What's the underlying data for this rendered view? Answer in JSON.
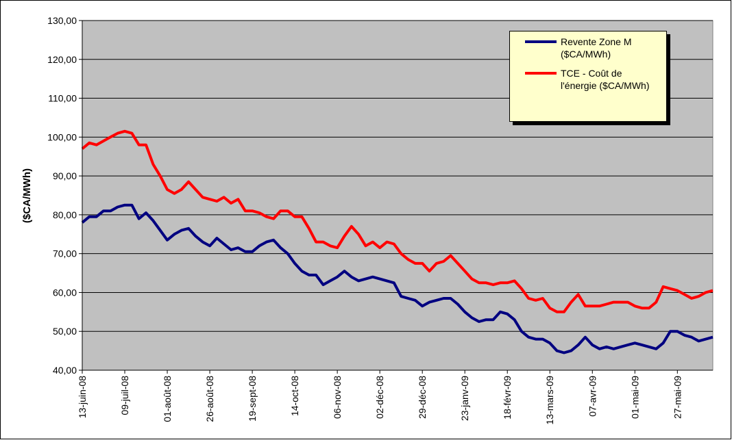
{
  "chart_data": {
    "type": "line",
    "y_label": "($CA/MWh)",
    "ylim": [
      40,
      130
    ],
    "yticks": [
      {
        "value": 40,
        "label": "40,00"
      },
      {
        "value": 50,
        "label": "50,00"
      },
      {
        "value": 60,
        "label": "60,00"
      },
      {
        "value": 70,
        "label": "70,00"
      },
      {
        "value": 80,
        "label": "80,00"
      },
      {
        "value": 90,
        "label": "90,00"
      },
      {
        "value": 100,
        "label": "100,00"
      },
      {
        "value": 110,
        "label": "110,00"
      },
      {
        "value": 120,
        "label": "120,00"
      },
      {
        "value": 130,
        "label": "130,00"
      }
    ],
    "grid": true,
    "legend": "top-right",
    "categories": [
      "13-juin-08",
      null,
      null,
      null,
      null,
      null,
      "09-juil-08",
      null,
      null,
      null,
      null,
      null,
      "01-août-08",
      null,
      null,
      null,
      null,
      null,
      "26-août-08",
      null,
      null,
      null,
      null,
      null,
      "19-sept-08",
      null,
      null,
      null,
      null,
      null,
      "14-oct-08",
      null,
      null,
      null,
      null,
      null,
      "06-nov-08",
      null,
      null,
      null,
      null,
      null,
      "02-déc-08",
      null,
      null,
      null,
      null,
      null,
      "29-déc-08",
      null,
      null,
      null,
      null,
      null,
      "23-janv-09",
      null,
      null,
      null,
      null,
      null,
      "18-févr-09",
      null,
      null,
      null,
      null,
      null,
      "13-mars-09",
      null,
      null,
      null,
      null,
      null,
      "07-avr-09",
      null,
      null,
      null,
      null,
      null,
      "01-mai-09",
      null,
      null,
      null,
      null,
      null,
      "27-mai-09",
      null,
      null,
      null,
      null,
      null
    ],
    "series": [
      {
        "name": "Revente Zone M ($CA/MWh)",
        "color": "#000080",
        "values": [
          78,
          79.5,
          79.5,
          81,
          81,
          82,
          82.5,
          82.5,
          79,
          80.5,
          78.5,
          76,
          73.5,
          75,
          76,
          76.5,
          74.5,
          73,
          72,
          74,
          72.5,
          71,
          71.5,
          70.5,
          70.5,
          72,
          73,
          73.5,
          71.5,
          70,
          67.5,
          65.5,
          64.5,
          64.5,
          62,
          63,
          64,
          65.5,
          64,
          63,
          63.5,
          64,
          63.5,
          63,
          62.5,
          59,
          58.5,
          58,
          56.5,
          57.5,
          58,
          58.5,
          58.5,
          57,
          55,
          53.5,
          52.5,
          53,
          53,
          55,
          54.5,
          53,
          50,
          48.5,
          48,
          48,
          47,
          45,
          44.5,
          45,
          46.5,
          48.5,
          46.5,
          45.5,
          46,
          45.5,
          46,
          46.5,
          47,
          46.5,
          46,
          45.5,
          47,
          50,
          50,
          49,
          48.5,
          47.5,
          48,
          48.5
        ]
      },
      {
        "name": "TCE - Coût de l'énergie ($CA/MWh)",
        "color": "#ff0000",
        "values": [
          97,
          98.5,
          98,
          99,
          100,
          101,
          101.5,
          101,
          98,
          98,
          93,
          90,
          86.5,
          85.5,
          86.5,
          88.5,
          86.5,
          84.5,
          84,
          83.5,
          84.5,
          83,
          84,
          81,
          81,
          80.5,
          79.5,
          79,
          81,
          81,
          79.5,
          79.5,
          76.5,
          73,
          73,
          72,
          71.5,
          74.5,
          77,
          75,
          72,
          73,
          71.5,
          73,
          72.5,
          70,
          68.5,
          67.5,
          67.5,
          65.5,
          67.5,
          68,
          69.5,
          67.5,
          65.5,
          63.5,
          62.5,
          62.5,
          62,
          62.5,
          62.5,
          63,
          61,
          58.5,
          58,
          58.5,
          56,
          55,
          55,
          57.5,
          59.5,
          56.5,
          56.5,
          56.5,
          57,
          57.5,
          57.5,
          57.5,
          56.5,
          56,
          56,
          57.5,
          61.5,
          61,
          60.5,
          59.5,
          58.5,
          59,
          60,
          60.5
        ]
      }
    ]
  }
}
